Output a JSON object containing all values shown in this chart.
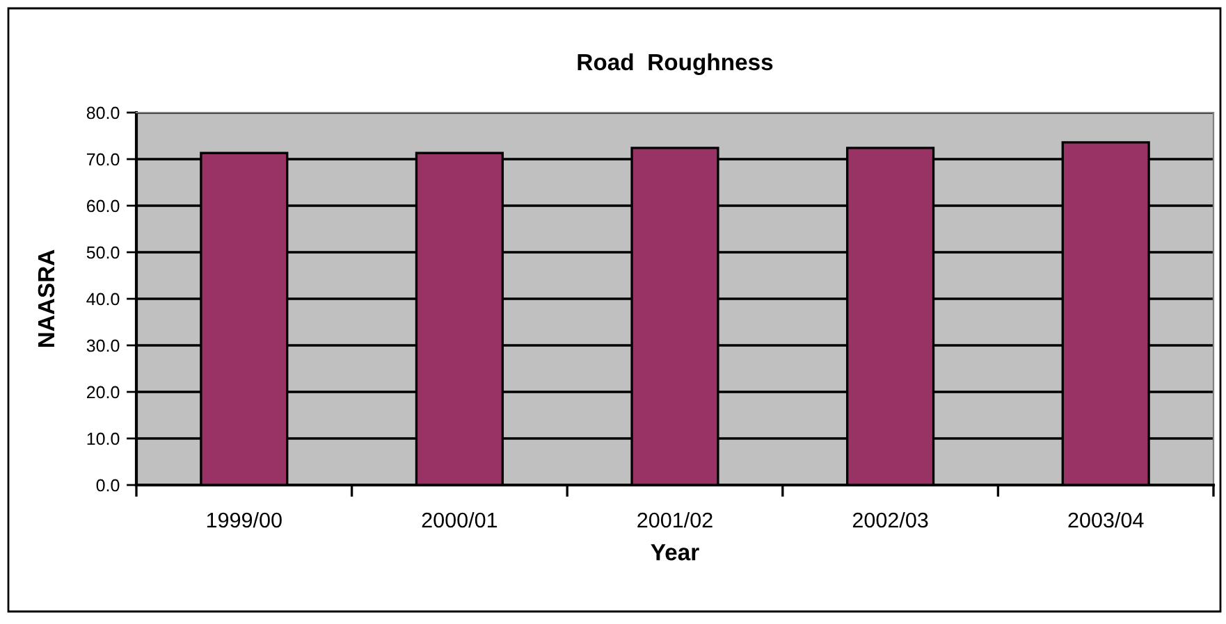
{
  "chart_data": {
    "type": "bar",
    "title": "Road  Roughness",
    "xlabel": "Year",
    "ylabel": "NAASRA",
    "categories": [
      "1999/00",
      "2000/01",
      "2001/02",
      "2002/03",
      "2003/04"
    ],
    "values": [
      71.3,
      71.3,
      72.4,
      72.4,
      73.6
    ],
    "color": "#993366",
    "ylim": [
      0,
      80
    ],
    "yticks": [
      {
        "value": 0,
        "label": "0.0"
      },
      {
        "value": 10,
        "label": "10.0"
      },
      {
        "value": 20,
        "label": "20.0"
      },
      {
        "value": 30,
        "label": "30.0"
      },
      {
        "value": 40,
        "label": "40.0"
      },
      {
        "value": 50,
        "label": "50.0"
      },
      {
        "value": 60,
        "label": "60.0"
      },
      {
        "value": 70,
        "label": "70.0"
      },
      {
        "value": 80,
        "label": "80.0"
      }
    ],
    "grid": "y",
    "legend": false
  }
}
